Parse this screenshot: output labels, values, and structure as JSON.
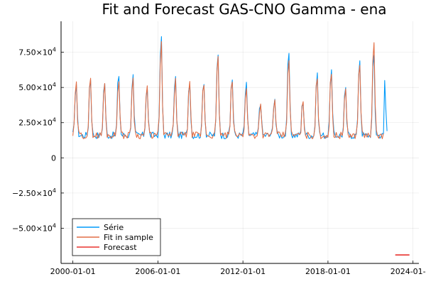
{
  "chart_data": {
    "type": "line",
    "title": "Fit and Forecast GAS-CNO Gamma - ena",
    "xlabel": "",
    "ylabel": "",
    "x_ticks": [
      "2000-01-01",
      "2006-01-01",
      "2012-01-01",
      "2018-01-01",
      "2024-01-01"
    ],
    "y_ticks": [
      {
        "value": 75000,
        "label": "7.50×10^4"
      },
      {
        "value": 50000,
        "label": "5.00×10^4"
      },
      {
        "value": 25000,
        "label": "2.50×10^4"
      },
      {
        "value": 0,
        "label": "0"
      },
      {
        "value": -25000,
        "label": "−2.50×10^4"
      },
      {
        "value": -50000,
        "label": "−5.00×10^4"
      }
    ],
    "ylim": [
      -75000,
      97000
    ],
    "xlim": [
      "1999-03-01",
      "2024-06-01"
    ],
    "grid": true,
    "legend_position": "bottom-left",
    "series": [
      {
        "name": "Série",
        "color": "#009AFA",
        "annual_peaks": [
          56000,
          60000,
          57000,
          63000,
          62000,
          54000,
          91000,
          60000,
          58000,
          58000,
          78000,
          60000,
          55000,
          42000,
          45000,
          80000,
          42000,
          62000,
          66000,
          51000,
          75000,
          78000
        ],
        "peak_month_fraction": 0.22,
        "end_value": 19000
      },
      {
        "name": "Fit in sample",
        "color": "#E26F46",
        "annual_peaks": [
          55000,
          58000,
          55000,
          60000,
          60000,
          52000,
          87000,
          58000,
          56000,
          56000,
          75000,
          58000,
          53000,
          40000,
          43000,
          76000,
          40000,
          60000,
          63000,
          50000,
          73000,
          87000
        ]
      },
      {
        "name": "Forecast",
        "color": "#E8332F",
        "x": [
          "2022-10-01",
          "2023-10-01"
        ],
        "values": [
          -69000,
          -69000
        ]
      }
    ]
  }
}
